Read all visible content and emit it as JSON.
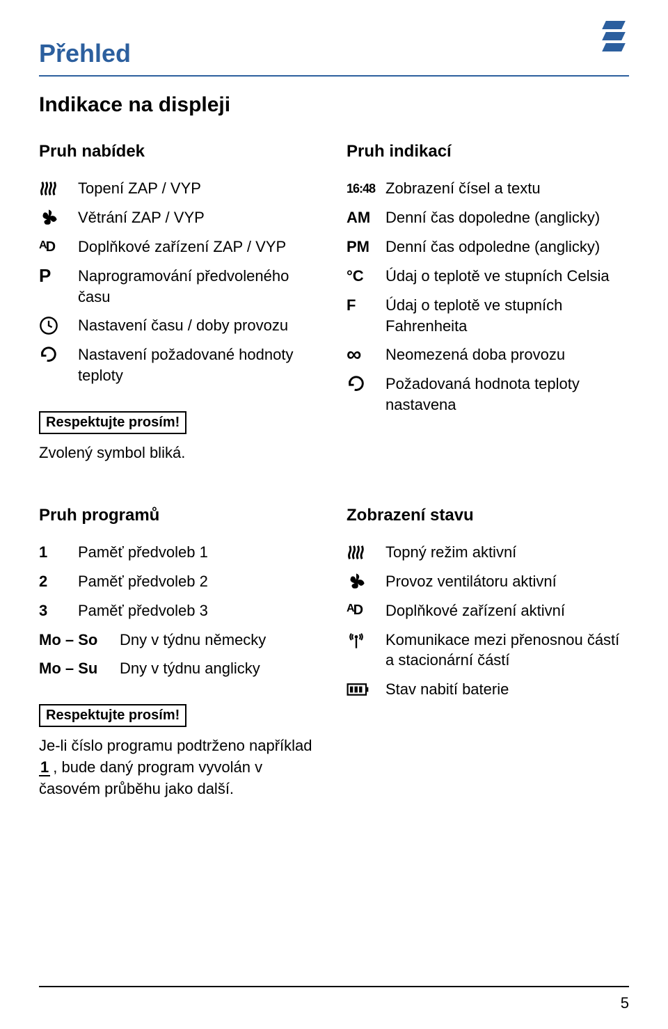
{
  "doc": {
    "title": "Přehled",
    "subtitle": "Indikace na displeji",
    "pageNumber": "5"
  },
  "noteLabel": "Respektujte prosím!",
  "menuBar": {
    "heading": "Pruh nabídek",
    "items": [
      {
        "icon": "heat-icon",
        "text": "Topení ZAP / VYP"
      },
      {
        "icon": "fan-icon",
        "text": "Větrání ZAP / VYP"
      },
      {
        "icon": "ad-icon",
        "text": "Doplňkové zařízení ZAP / VYP"
      },
      {
        "icon": "p-icon",
        "text": "Naprogramování předvoleného času"
      },
      {
        "icon": "clock-icon",
        "text": "Nastavení času / doby provozu"
      },
      {
        "icon": "arrow-icon",
        "text": "Nastavení požadované hodnoty teploty"
      }
    ],
    "noteText": "Zvolený symbol bliká."
  },
  "indicationBar": {
    "heading": "Pruh indikací",
    "items": [
      {
        "sym": "16:48",
        "symClass": "digital",
        "text": "Zobrazení čísel a textu"
      },
      {
        "sym": "AM",
        "text": "Denní čas dopoledne (anglicky)"
      },
      {
        "sym": "PM",
        "text": "Denní čas odpoledne (anglicky)"
      },
      {
        "sym": "°C",
        "text": "Údaj o teplotě ve stupních Celsia"
      },
      {
        "sym": "F",
        "text": "Údaj o teplotě ve stupních Fahrenheita"
      },
      {
        "sym": "∞",
        "text": "Neomezená doba provozu"
      },
      {
        "sym": "arrow-icon",
        "isIcon": true,
        "text": "Požadovaná hodnota teploty nastavena"
      }
    ]
  },
  "programBar": {
    "heading": "Pruh programů",
    "items": [
      {
        "sym": "1",
        "text": "Paměť předvoleb 1"
      },
      {
        "sym": "2",
        "text": "Paměť předvoleb 2"
      },
      {
        "sym": "3",
        "text": "Paměť předvoleb 3"
      },
      {
        "sym": "Mo – So",
        "wide": true,
        "text": "Dny v týdnu německy"
      },
      {
        "sym": "Mo – Su",
        "wide": true,
        "text": "Dny v týdnu anglicky"
      }
    ],
    "noteText1": "Je-li číslo programu podtrženo například",
    "noteText2": ", bude daný program vyvolán v časovém průběhu jako další.",
    "noteUnderline": "1"
  },
  "statusDisplay": {
    "heading": "Zobrazení stavu",
    "items": [
      {
        "icon": "heat-icon",
        "text": "Topný režim aktivní"
      },
      {
        "icon": "fan-icon",
        "text": "Provoz ventilátoru aktivní"
      },
      {
        "icon": "ad-icon",
        "text": "Doplňkové zařízení aktivní"
      },
      {
        "icon": "antenna-icon",
        "text": "Komunikace mezi přenosnou částí a stacionární částí"
      },
      {
        "icon": "battery-icon",
        "text": "Stav nabití baterie"
      }
    ]
  }
}
